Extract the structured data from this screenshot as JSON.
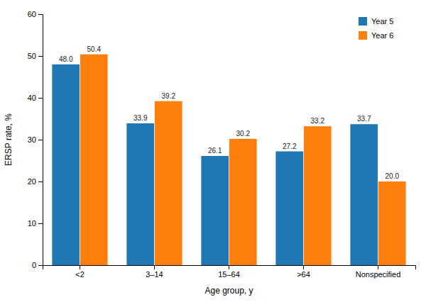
{
  "chart_data": {
    "type": "bar",
    "categories": [
      "<2",
      "3–14",
      "15–64",
      ">64",
      "Nonspecified"
    ],
    "series": [
      {
        "name": "Year 5",
        "values": [
          48.0,
          33.9,
          26.1,
          27.2,
          33.7
        ],
        "value_labels": [
          "48.0",
          "33.9",
          "26.1",
          "27.2",
          "33.7"
        ]
      },
      {
        "name": "Year 6",
        "values": [
          50.4,
          39.2,
          30.2,
          33.2,
          20.0
        ],
        "value_labels": [
          "50.4",
          "39.2",
          "30.2",
          "33.2",
          "20.0"
        ]
      }
    ],
    "xlabel": "Age group, y",
    "ylabel": "ERSP rate, %",
    "ylim": [
      0,
      60
    ],
    "yticks": [
      0,
      10,
      20,
      30,
      40,
      50,
      60
    ],
    "legend": "upper right",
    "data_labels": true,
    "grid": false
  }
}
